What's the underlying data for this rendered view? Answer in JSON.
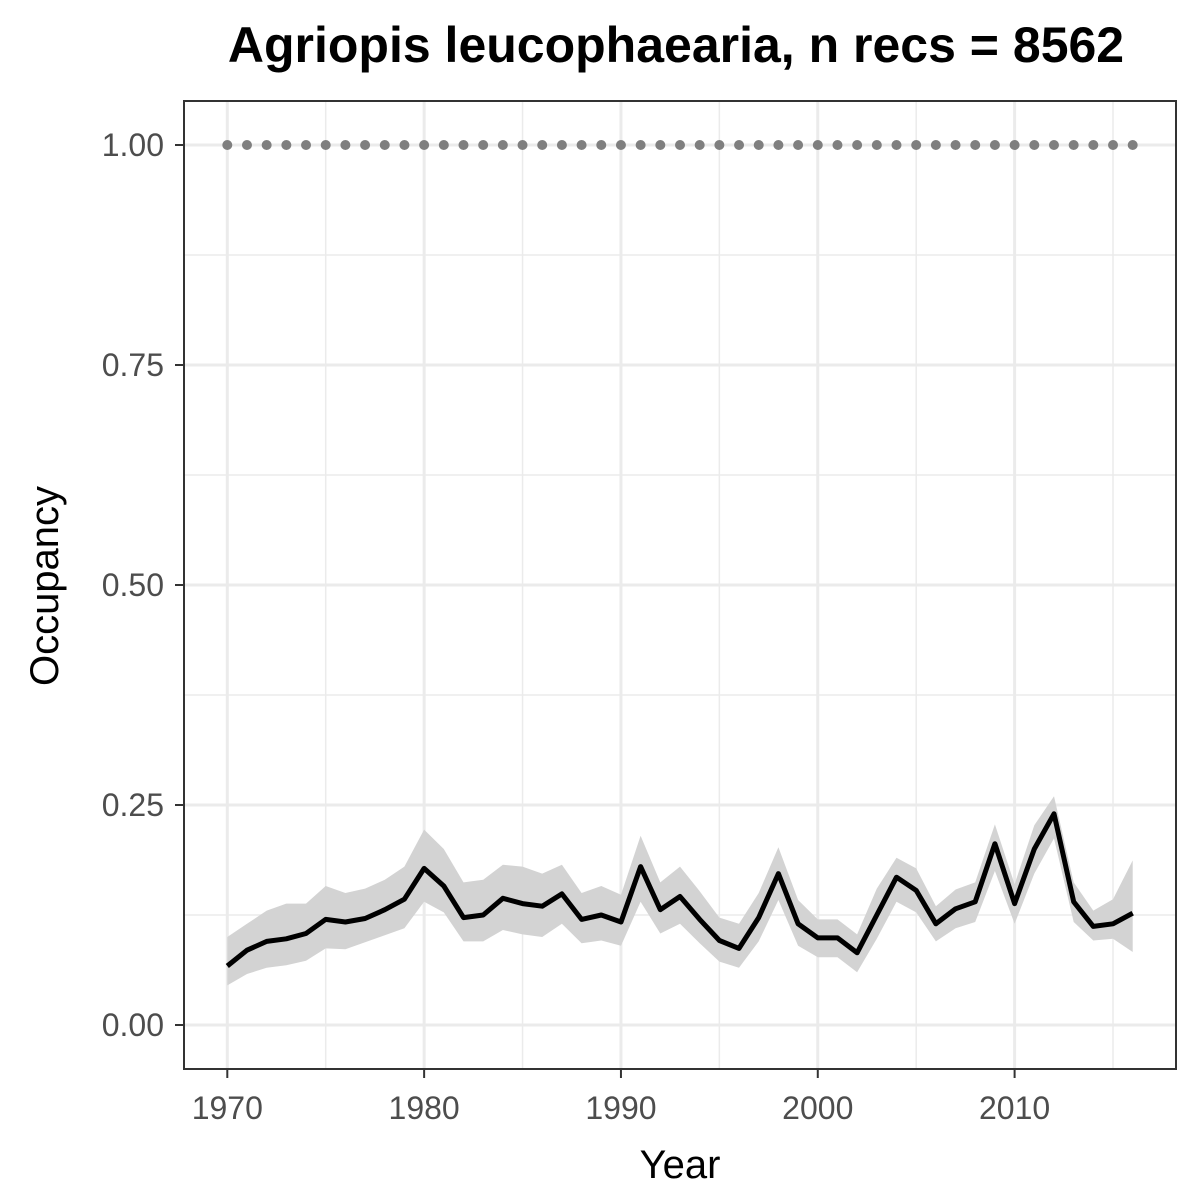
{
  "chart_data": {
    "type": "line",
    "title": "Agriopis leucophaearia, n recs = 8562",
    "xlabel": "Year",
    "ylabel": "Occupancy",
    "xlim": [
      1967.8,
      2018.2
    ],
    "ylim": [
      -0.05,
      1.05
    ],
    "x_ticks": [
      1970,
      1980,
      1990,
      2000,
      2010
    ],
    "x_tick_labels": [
      "1970",
      "1980",
      "1990",
      "2000",
      "2010"
    ],
    "x_minor_ticks": [
      1975,
      1985,
      1995,
      2005,
      2015
    ],
    "y_ticks": [
      0.0,
      0.25,
      0.5,
      0.75,
      1.0
    ],
    "y_tick_labels": [
      "0.00",
      "0.25",
      "0.50",
      "0.75",
      "1.00"
    ],
    "y_minor_ticks": [
      0.125,
      0.375,
      0.625,
      0.875
    ],
    "grid": true,
    "legend": "none",
    "x": [
      1970,
      1971,
      1972,
      1973,
      1974,
      1975,
      1976,
      1977,
      1978,
      1979,
      1980,
      1981,
      1982,
      1983,
      1984,
      1985,
      1986,
      1987,
      1988,
      1989,
      1990,
      1991,
      1992,
      1993,
      1994,
      1995,
      1996,
      1997,
      1998,
      1999,
      2000,
      2001,
      2002,
      2003,
      2004,
      2005,
      2006,
      2007,
      2008,
      2009,
      2010,
      2011,
      2012,
      2013,
      2014,
      2015,
      2016
    ],
    "series": [
      {
        "values": [
          0.067,
          0.085,
          0.095,
          0.098,
          0.104,
          0.12,
          0.117,
          0.121,
          0.131,
          0.143,
          0.178,
          0.158,
          0.122,
          0.125,
          0.144,
          0.138,
          0.135,
          0.149,
          0.12,
          0.125,
          0.117,
          0.18,
          0.131,
          0.146,
          0.12,
          0.096,
          0.087,
          0.122,
          0.172,
          0.115,
          0.099,
          0.099,
          0.082,
          0.125,
          0.168,
          0.153,
          0.115,
          0.132,
          0.14,
          0.206,
          0.138,
          0.2,
          0.24,
          0.14,
          0.112,
          0.115,
          0.127
        ],
        "lower": [
          0.045,
          0.058,
          0.065,
          0.068,
          0.073,
          0.087,
          0.086,
          0.094,
          0.102,
          0.11,
          0.14,
          0.128,
          0.095,
          0.095,
          0.108,
          0.103,
          0.1,
          0.115,
          0.093,
          0.096,
          0.09,
          0.14,
          0.104,
          0.115,
          0.093,
          0.072,
          0.065,
          0.095,
          0.142,
          0.09,
          0.077,
          0.077,
          0.06,
          0.098,
          0.14,
          0.128,
          0.095,
          0.11,
          0.117,
          0.175,
          0.115,
          0.172,
          0.212,
          0.117,
          0.096,
          0.098,
          0.083
        ],
        "upper": [
          0.1,
          0.115,
          0.13,
          0.138,
          0.138,
          0.158,
          0.15,
          0.155,
          0.165,
          0.18,
          0.222,
          0.2,
          0.162,
          0.165,
          0.182,
          0.18,
          0.172,
          0.182,
          0.15,
          0.158,
          0.148,
          0.215,
          0.162,
          0.18,
          0.152,
          0.122,
          0.115,
          0.15,
          0.202,
          0.142,
          0.12,
          0.12,
          0.103,
          0.155,
          0.19,
          0.178,
          0.135,
          0.154,
          0.162,
          0.228,
          0.16,
          0.227,
          0.26,
          0.162,
          0.13,
          0.143,
          0.187
        ],
        "color": "#000000",
        "ribbon_color": "#d3d3d3"
      },
      {
        "values": [
          1,
          1,
          1,
          1,
          1,
          1,
          1,
          1,
          1,
          1,
          1,
          1,
          1,
          1,
          1,
          1,
          1,
          1,
          1,
          1,
          1,
          1,
          1,
          1,
          1,
          1,
          1,
          1,
          1,
          1,
          1,
          1,
          1,
          1,
          1,
          1,
          1,
          1,
          1,
          1,
          1,
          1,
          1,
          1,
          1,
          1,
          1
        ],
        "color": "#7f7f7f",
        "style": "dotted"
      }
    ]
  }
}
